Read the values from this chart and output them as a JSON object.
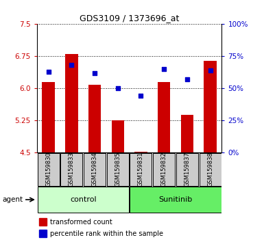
{
  "title": "GDS3109 / 1373696_at",
  "samples": [
    "GSM159830",
    "GSM159833",
    "GSM159834",
    "GSM159835",
    "GSM159831",
    "GSM159832",
    "GSM159837",
    "GSM159838"
  ],
  "red_values": [
    6.15,
    6.8,
    6.08,
    5.25,
    4.52,
    6.15,
    5.38,
    6.65
  ],
  "blue_values": [
    63,
    68,
    62,
    50,
    44,
    65,
    57,
    64
  ],
  "ymin": 4.5,
  "ymax": 7.5,
  "yticks_left": [
    4.5,
    5.25,
    6.0,
    6.75,
    7.5
  ],
  "yticks_right": [
    0,
    25,
    50,
    75,
    100
  ],
  "control_label": "control",
  "sunitinib_label": "Sunitinib",
  "agent_label": "agent",
  "legend_red": "transformed count",
  "legend_blue": "percentile rank within the sample",
  "bar_color": "#cc0000",
  "dot_color": "#0000cc",
  "control_bg": "#ccffcc",
  "sunitinib_bg": "#66ee66",
  "tick_label_bg": "#cccccc",
  "n_control": 4,
  "n_sunitinib": 4
}
